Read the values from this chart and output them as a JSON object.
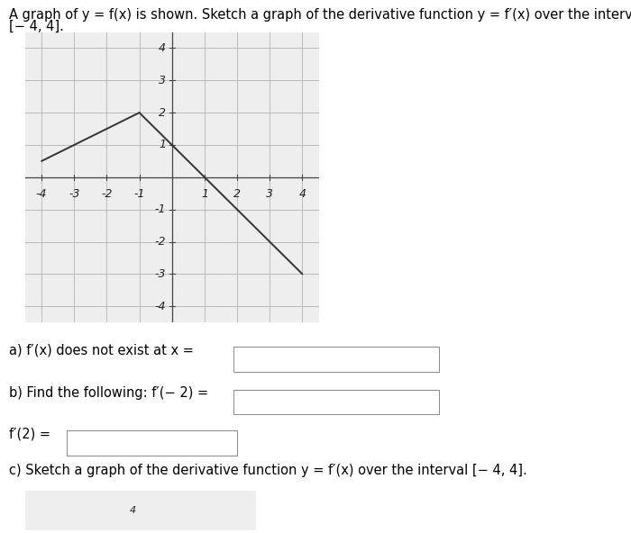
{
  "graph_xlim": [
    -4.5,
    4.5
  ],
  "graph_ylim": [
    -4.5,
    4.5
  ],
  "fx_segments": [
    {
      "x": [
        -4,
        -1
      ],
      "y": [
        0.5,
        2
      ]
    },
    {
      "x": [
        -1,
        4
      ],
      "y": [
        2,
        -3
      ]
    }
  ],
  "line_color": "#333333",
  "line_width": 1.4,
  "grid_color": "#bbbbbb",
  "bg_color": "#eeeeee",
  "axis_color": "#444444",
  "font_size_text": 10.5,
  "font_size_ticks": 9,
  "title_line1": "A graph of y = f(x) is shown. Sketch a graph of the derivative function y = f′(x) over the interval",
  "title_line2": "[− 4, 4].",
  "question_a": "a) f′(x) does not exist at x =",
  "question_b": "b) Find the following: f′(− 2) =",
  "question_f2": "f′(2) =",
  "question_c": "c) Sketch a graph of the derivative function y = f′(x) over the interval [− 4, 4].",
  "sketch_bottom_grid_label": "4"
}
